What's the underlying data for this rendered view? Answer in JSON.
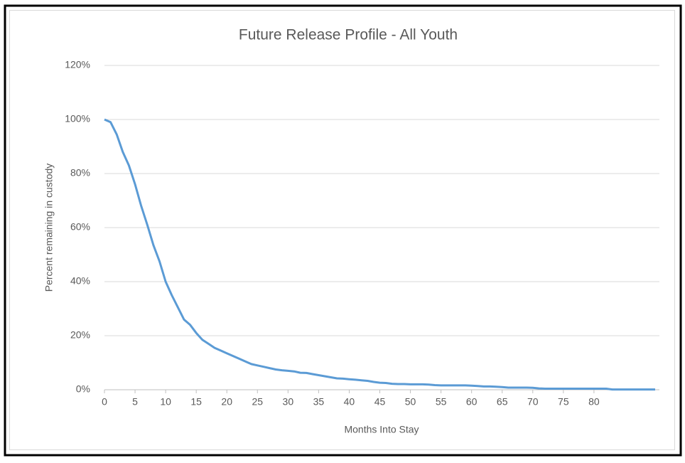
{
  "chart_data": {
    "type": "line",
    "title": "Future Release Profile - All Youth",
    "x_label": "Months Into Stay",
    "y_label": "Percent remaining in custody",
    "x": [
      0,
      1,
      2,
      3,
      4,
      5,
      6,
      7,
      8,
      9,
      10,
      11,
      12,
      13,
      14,
      15,
      16,
      17,
      18,
      19,
      20,
      21,
      22,
      23,
      24,
      25,
      26,
      27,
      28,
      29,
      30,
      31,
      32,
      33,
      34,
      35,
      36,
      37,
      38,
      39,
      40,
      41,
      42,
      43,
      44,
      45,
      46,
      47,
      48,
      49,
      50,
      51,
      52,
      53,
      54,
      55,
      56,
      57,
      58,
      59,
      60,
      61,
      62,
      63,
      64,
      65,
      66,
      67,
      68,
      69,
      70,
      71,
      72,
      73,
      74,
      75,
      76,
      77,
      78,
      79,
      80,
      81,
      82,
      83,
      84,
      85,
      86,
      87,
      88,
      89,
      90
    ],
    "series": [
      {
        "name": "All Youth",
        "color": "#5b9bd5",
        "values": [
          100,
          99,
          94.5,
          88,
          83,
          76,
          68,
          61,
          53.5,
          47.5,
          40,
          35,
          30.5,
          26,
          24,
          21,
          18.5,
          17,
          15.5,
          14.5,
          13.5,
          12.5,
          11.5,
          10.5,
          9.5,
          9,
          8.5,
          8,
          7.5,
          7.2,
          7,
          6.8,
          6.3,
          6.2,
          5.8,
          5.4,
          5,
          4.6,
          4.2,
          4.1,
          3.9,
          3.7,
          3.5,
          3.3,
          2.9,
          2.6,
          2.5,
          2.2,
          2.1,
          2.1,
          2,
          2,
          2,
          1.9,
          1.7,
          1.6,
          1.6,
          1.6,
          1.6,
          1.6,
          1.5,
          1.4,
          1.2,
          1.2,
          1.1,
          1,
          0.8,
          0.8,
          0.8,
          0.8,
          0.7,
          0.5,
          0.4,
          0.4,
          0.4,
          0.4,
          0.4,
          0.4,
          0.4,
          0.4,
          0.4,
          0.4,
          0.4,
          0.1,
          0.1,
          0.1,
          0.1,
          0.1,
          0.1,
          0.1,
          0.1
        ]
      }
    ],
    "xlim": [
      0,
      90
    ],
    "xticks": [
      0,
      5,
      10,
      15,
      20,
      25,
      30,
      35,
      40,
      45,
      50,
      55,
      60,
      65,
      70,
      75,
      80
    ],
    "ylim": [
      0,
      120
    ],
    "yticks": [
      {
        "value": 0,
        "label": "0%"
      },
      {
        "value": 20,
        "label": "20%"
      },
      {
        "value": 40,
        "label": "40%"
      },
      {
        "value": 60,
        "label": "60%"
      },
      {
        "value": 80,
        "label": "80%"
      },
      {
        "value": 100,
        "label": "100%"
      },
      {
        "value": 120,
        "label": "120%"
      }
    ],
    "grid": true
  }
}
